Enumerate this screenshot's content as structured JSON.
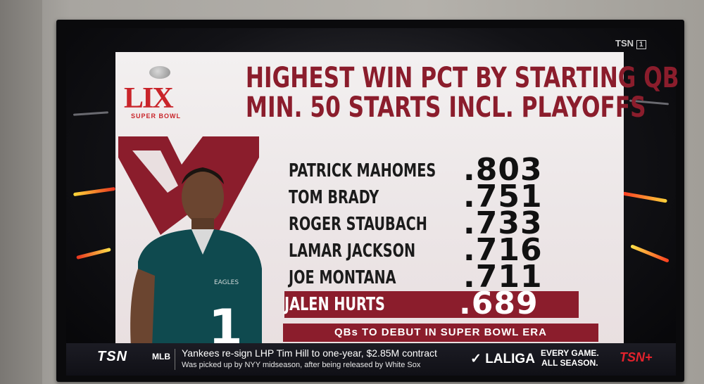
{
  "graphic": {
    "title_line1": "HIGHEST WIN PCT BY STARTING QB",
    "title_line2": "MIN. 50 STARTS INCL. PLAYOFFS",
    "super_bowl_logo_text": "SUPER BOWL",
    "super_bowl_numeral": "LIX",
    "rows": [
      {
        "name": "PATRICK MAHOMES",
        "pct": ".803",
        "highlight": false
      },
      {
        "name": "TOM BRADY",
        "pct": ".751",
        "highlight": false
      },
      {
        "name": "ROGER STAUBACH",
        "pct": ".733",
        "highlight": false
      },
      {
        "name": "LAMAR JACKSON",
        "pct": ".716",
        "highlight": false
      },
      {
        "name": "JOE MONTANA",
        "pct": ".711",
        "highlight": false
      },
      {
        "name": "JALEN HURTS",
        "pct": ".689",
        "highlight": true
      }
    ],
    "footer": "QBs TO DEBUT IN SUPER BOWL ERA",
    "accent_color": "#8b1d2c",
    "player_jersey_number": "1",
    "jersey_text": "EAGLES"
  },
  "channel": {
    "logo": "TSN",
    "number": "1"
  },
  "ticker": {
    "network": "TSN",
    "league": "MLB",
    "headline": "Yankees re-sign LHP Tim Hill to one-year, $2.85M contract",
    "subline": "Was picked up by NYY midseason, after being released by White Sox",
    "sponsor": "LALIGA",
    "promo_line1": "EVERY GAME.",
    "promo_line2": "ALL SEASON.",
    "tsn_plus": "TSN+"
  }
}
